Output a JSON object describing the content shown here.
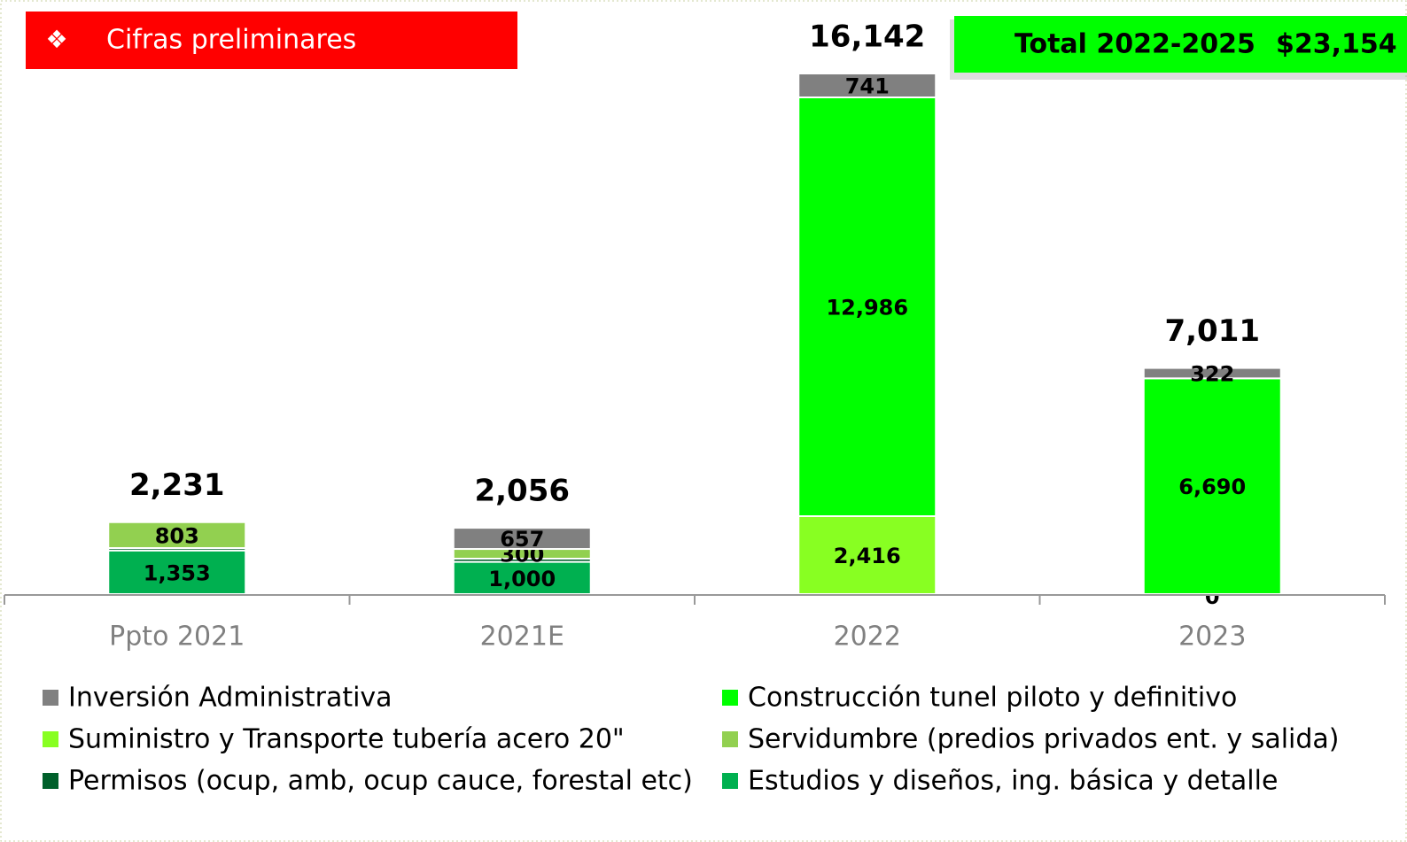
{
  "chart_data": {
    "type": "stacked_bar",
    "annotations": {
      "badge_symbol": "❖",
      "badge_text": "Cifras preliminares",
      "total_label": "Total 2022-2025",
      "total_value": "$23,154"
    },
    "categories": [
      "Ppto 2021",
      "2021E",
      "2022",
      "2023"
    ],
    "series": [
      {
        "name": "Estudios y diseños, ing. básica y detalle",
        "color": "#00b050",
        "values": [
          1353,
          1000,
          null,
          null
        ],
        "value_labels": [
          "1,353",
          "1,000",
          null,
          null
        ]
      },
      {
        "name": "Permisos (ocup, amb, ocup cauce, forestal etc)",
        "color": "#00602b",
        "values": [
          75,
          99,
          null,
          null
        ],
        "value_labels": [
          null,
          null,
          null,
          null
        ]
      },
      {
        "name": "Servidumbre (predios privados ent. y salida)",
        "color": "#92d050",
        "values": [
          803,
          300,
          null,
          null
        ],
        "value_labels": [
          "803",
          "300",
          null,
          null
        ]
      },
      {
        "name": "Suministro y Transporte tubería acero 20\"",
        "color": "#88ff22",
        "values": [
          null,
          null,
          2416,
          0
        ],
        "value_labels": [
          null,
          null,
          "2,416",
          "0"
        ]
      },
      {
        "name": "Construcción tunel piloto y definitivo",
        "color": "#00ff00",
        "values": [
          null,
          null,
          12986,
          6690
        ],
        "value_labels": [
          null,
          null,
          "12,986",
          "6,690"
        ]
      },
      {
        "name": "Inversión Administrativa",
        "color": "#808080",
        "values": [
          null,
          657,
          741,
          322
        ],
        "value_labels": [
          null,
          "657",
          "741",
          "322"
        ]
      }
    ],
    "totals": [
      2231,
      2056,
      16142,
      7011
    ],
    "total_labels": [
      "2,231",
      "2,056",
      "16,142",
      "7,011"
    ],
    "ylim": [
      0,
      16500
    ]
  }
}
